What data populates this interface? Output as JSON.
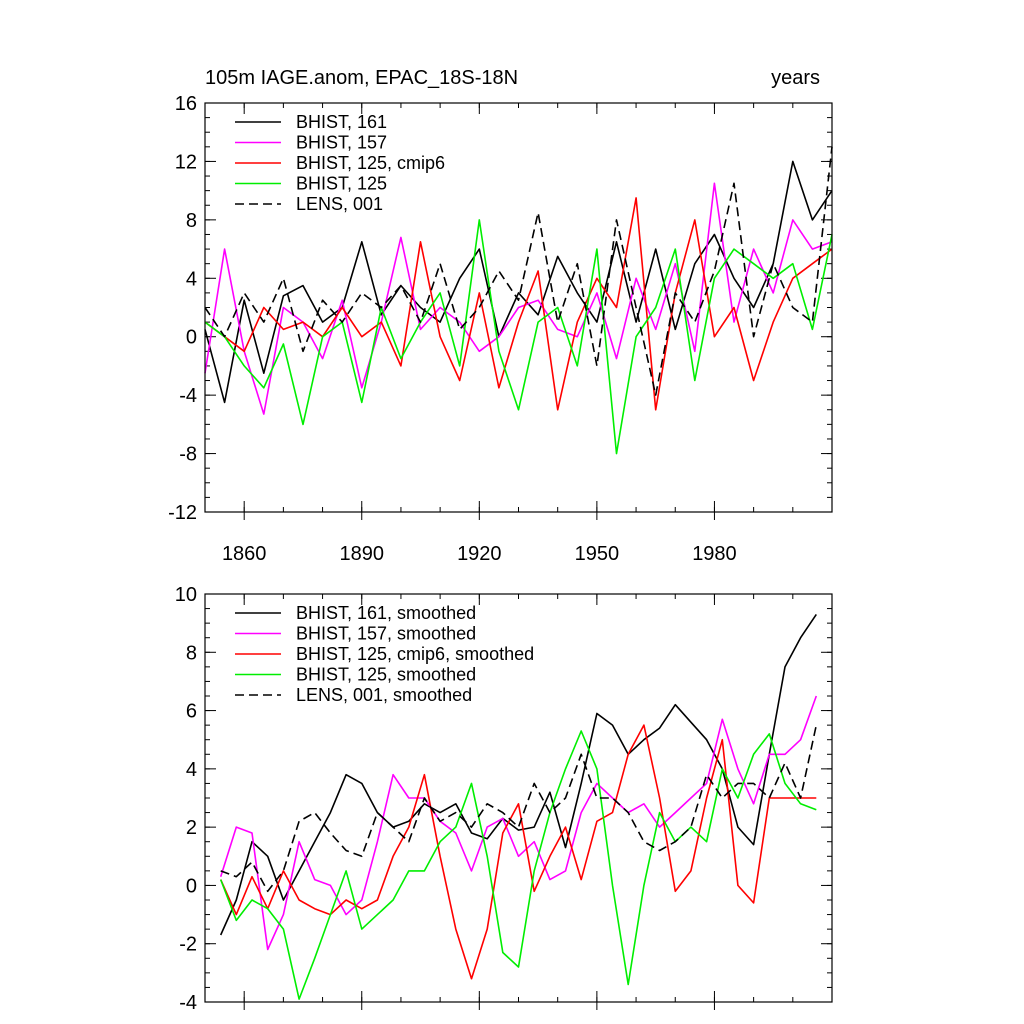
{
  "chart_data": [
    {
      "type": "line",
      "title_left": "105m IAGE.anom, EPAC_18S-18N",
      "title_right": "years",
      "xlim": [
        1850,
        2010
      ],
      "ylim": [
        -12,
        16
      ],
      "yticks": [
        "16",
        "12",
        "8",
        "4",
        "0",
        "-4",
        "-8",
        "-12"
      ],
      "ytick_values": [
        16,
        12,
        8,
        4,
        0,
        -4,
        -8,
        -12
      ],
      "xticks": [
        "1860",
        "1890",
        "1920",
        "1950",
        "1980"
      ],
      "xtick_values": [
        1860,
        1890,
        1920,
        1950,
        1980
      ],
      "legend_placement": "top-left",
      "x": [
        1850,
        1855,
        1860,
        1865,
        1870,
        1875,
        1880,
        1885,
        1890,
        1895,
        1900,
        1905,
        1910,
        1915,
        1920,
        1925,
        1930,
        1935,
        1940,
        1945,
        1950,
        1955,
        1960,
        1965,
        1970,
        1975,
        1980,
        1985,
        1990,
        1995,
        2000,
        2005,
        2010
      ],
      "series": [
        {
          "name": "BHIST, 161",
          "color": "#000000",
          "dash": false,
          "values": [
            0.5,
            -4.5,
            2.5,
            -2.5,
            2.8,
            3.5,
            1.0,
            2.0,
            6.5,
            1.5,
            3.5,
            2.0,
            1.0,
            4.0,
            6.0,
            0.0,
            3.0,
            1.5,
            5.5,
            3.0,
            1.0,
            6.5,
            1.0,
            6.0,
            0.5,
            5.0,
            7.0,
            4.0,
            2.0,
            5.0,
            12.0,
            8.0,
            10.0
          ]
        },
        {
          "name": "BHIST, 157",
          "color": "#ff00ff",
          "dash": false,
          "values": [
            -2.5,
            6.0,
            -1.0,
            -5.3,
            2.0,
            1.0,
            -1.5,
            2.5,
            -3.5,
            1.0,
            6.8,
            0.5,
            2.0,
            1.0,
            -1.0,
            0.0,
            2.0,
            2.5,
            0.5,
            0.0,
            3.0,
            -1.5,
            4.0,
            0.5,
            5.0,
            -1.0,
            10.5,
            1.0,
            6.0,
            3.0,
            8.0,
            6.0,
            6.5
          ]
        },
        {
          "name": "BHIST, 125, cmip6",
          "color": "#ff0000",
          "dash": false,
          "values": [
            1.0,
            0.0,
            -1.0,
            2.0,
            0.5,
            1.0,
            0.0,
            2.0,
            0.0,
            1.0,
            -2.0,
            6.5,
            0.0,
            -3.0,
            3.0,
            -3.5,
            1.0,
            4.5,
            -5.0,
            1.0,
            4.0,
            2.0,
            9.5,
            -5.0,
            3.0,
            8.0,
            0.0,
            2.0,
            -3.0,
            1.0,
            4.0,
            5.0,
            6.0
          ]
        },
        {
          "name": "BHIST, 125",
          "color": "#00ee00",
          "dash": false,
          "values": [
            1.0,
            0.0,
            -2.0,
            -3.5,
            -0.5,
            -6.0,
            0.0,
            1.0,
            -4.5,
            2.0,
            -1.5,
            1.0,
            3.0,
            -2.0,
            8.0,
            -1.0,
            -5.0,
            1.0,
            2.0,
            -2.0,
            6.0,
            -8.0,
            0.0,
            2.0,
            6.0,
            -3.0,
            4.0,
            6.0,
            5.0,
            4.0,
            5.0,
            0.5,
            7.0
          ]
        },
        {
          "name": "LENS, 001",
          "color": "#000000",
          "dash": true,
          "values": [
            2.0,
            0.0,
            3.0,
            1.0,
            4.0,
            -1.0,
            2.5,
            1.0,
            3.0,
            2.0,
            3.5,
            1.0,
            5.0,
            0.5,
            2.0,
            4.5,
            2.5,
            8.5,
            1.0,
            5.0,
            -2.0,
            8.0,
            2.0,
            -4.0,
            3.0,
            1.0,
            4.5,
            10.5,
            0.0,
            5.0,
            2.0,
            1.0,
            13.0
          ]
        }
      ]
    },
    {
      "type": "line",
      "xlim": [
        1850,
        2010
      ],
      "ylim": [
        -4,
        10
      ],
      "yticks": [
        "10",
        "8",
        "6",
        "4",
        "2",
        "0",
        "-2",
        "-4"
      ],
      "ytick_values": [
        10,
        8,
        6,
        4,
        2,
        0,
        -2,
        -4
      ],
      "legend_placement": "top-left",
      "x": [
        1854,
        1858,
        1862,
        1866,
        1870,
        1874,
        1878,
        1882,
        1886,
        1890,
        1894,
        1898,
        1902,
        1906,
        1910,
        1914,
        1918,
        1922,
        1926,
        1930,
        1934,
        1938,
        1942,
        1946,
        1950,
        1954,
        1958,
        1962,
        1966,
        1970,
        1974,
        1978,
        1982,
        1986,
        1990,
        1994,
        1998,
        2002,
        2006
      ],
      "series": [
        {
          "name": "BHIST, 161, smoothed",
          "color": "#000000",
          "dash": false,
          "values": [
            -1.7,
            -0.5,
            1.5,
            1.0,
            -0.5,
            0.5,
            1.5,
            2.5,
            3.8,
            3.5,
            2.5,
            2.0,
            2.2,
            2.8,
            2.5,
            2.8,
            1.8,
            1.6,
            2.3,
            1.9,
            2.0,
            3.2,
            1.3,
            3.5,
            5.9,
            5.5,
            4.5,
            5.0,
            5.4,
            6.2,
            5.6,
            5.0,
            4.0,
            2.0,
            1.4,
            4.5,
            7.5,
            8.5,
            9.3
          ]
        },
        {
          "name": "BHIST, 157, smoothed",
          "color": "#ff00ff",
          "dash": false,
          "values": [
            0.3,
            2.0,
            1.8,
            -2.2,
            -1.0,
            1.5,
            0.2,
            0.0,
            -1.0,
            -0.5,
            1.5,
            3.8,
            3.0,
            3.0,
            2.2,
            1.8,
            0.5,
            2.0,
            2.3,
            1.0,
            1.5,
            0.2,
            0.5,
            2.5,
            3.5,
            3.0,
            2.5,
            2.8,
            2.0,
            2.5,
            3.0,
            3.5,
            5.7,
            4.0,
            2.8,
            4.5,
            4.5,
            5.0,
            6.5
          ]
        },
        {
          "name": "BHIST, 125, cmip6, smoothed",
          "color": "#ff0000",
          "dash": false,
          "values": [
            0.2,
            -1.0,
            0.3,
            -0.8,
            0.5,
            -0.5,
            -0.8,
            -1.0,
            -0.5,
            -0.8,
            -0.5,
            1.0,
            2.0,
            3.8,
            1.0,
            -1.5,
            -3.2,
            -1.5,
            1.8,
            2.8,
            -0.2,
            1.0,
            2.0,
            0.2,
            2.2,
            2.5,
            4.5,
            5.5,
            3.0,
            -0.2,
            0.5,
            3.0,
            5.0,
            0.0,
            -0.6,
            3.0,
            3.0,
            3.0,
            3.0
          ]
        },
        {
          "name": "BHIST, 125, smoothed",
          "color": "#00ee00",
          "dash": false,
          "values": [
            0.2,
            -1.2,
            -0.5,
            -0.8,
            -1.5,
            -3.9,
            -2.5,
            -1.0,
            0.5,
            -1.5,
            -1.0,
            -0.5,
            0.5,
            0.5,
            1.5,
            2.0,
            3.5,
            1.0,
            -2.3,
            -2.8,
            0.5,
            2.5,
            4.0,
            5.3,
            4.0,
            0.0,
            -3.4,
            0.0,
            2.5,
            1.5,
            2.0,
            1.5,
            4.0,
            3.0,
            4.5,
            5.2,
            3.5,
            2.8,
            2.6
          ]
        },
        {
          "name": "LENS, 001, smoothed",
          "color": "#000000",
          "dash": true,
          "values": [
            0.5,
            0.3,
            0.8,
            -0.2,
            0.5,
            2.2,
            2.5,
            1.8,
            1.2,
            1.0,
            2.5,
            2.0,
            1.5,
            3.0,
            2.2,
            2.5,
            2.0,
            2.8,
            2.5,
            2.0,
            3.5,
            2.5,
            3.0,
            4.5,
            3.0,
            3.0,
            2.5,
            1.5,
            1.2,
            1.5,
            2.0,
            3.8,
            3.0,
            3.5,
            3.5,
            3.0,
            4.2,
            3.0,
            5.5
          ]
        }
      ]
    }
  ]
}
